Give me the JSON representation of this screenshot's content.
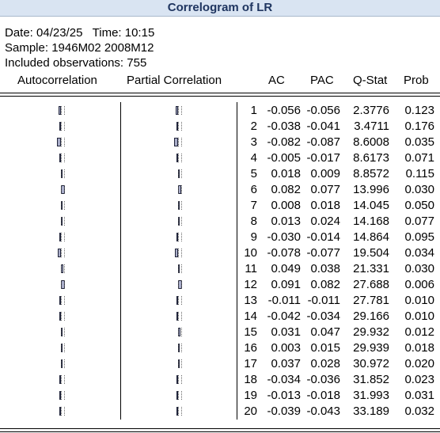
{
  "window": {
    "title": "Correlogram of LR"
  },
  "meta": {
    "date": "Date: 04/23/25   Time: 10:15",
    "sample": "Sample: 1946M02 2008M12",
    "observations": "Included observations: 755"
  },
  "headers": {
    "autocorrelation": "Autocorrelation",
    "partial_correlation": "Partial Correlation",
    "ac": "AC",
    "pac": "PAC",
    "qstat": "Q-Stat",
    "prob": "Prob"
  },
  "rows": [
    {
      "lag": "1",
      "ac": "-0.056",
      "pac": "-0.056",
      "q": "2.3776",
      "prob": "0.123"
    },
    {
      "lag": "2",
      "ac": "-0.038",
      "pac": "-0.041",
      "q": "3.4711",
      "prob": "0.176"
    },
    {
      "lag": "3",
      "ac": "-0.082",
      "pac": "-0.087",
      "q": "8.6008",
      "prob": "0.035"
    },
    {
      "lag": "4",
      "ac": "-0.005",
      "pac": "-0.017",
      "q": "8.6173",
      "prob": "0.071"
    },
    {
      "lag": "5",
      "ac": "0.018",
      "pac": "0.009",
      "q": "8.8572",
      "prob": "0.115"
    },
    {
      "lag": "6",
      "ac": "0.082",
      "pac": "0.077",
      "q": "13.996",
      "prob": "0.030"
    },
    {
      "lag": "7",
      "ac": "0.008",
      "pac": "0.018",
      "q": "14.045",
      "prob": "0.050"
    },
    {
      "lag": "8",
      "ac": "0.013",
      "pac": "0.024",
      "q": "14.168",
      "prob": "0.077"
    },
    {
      "lag": "9",
      "ac": "-0.030",
      "pac": "-0.014",
      "q": "14.864",
      "prob": "0.095"
    },
    {
      "lag": "10",
      "ac": "-0.078",
      "pac": "-0.077",
      "q": "19.504",
      "prob": "0.034"
    },
    {
      "lag": "11",
      "ac": "0.049",
      "pac": "0.038",
      "q": "21.331",
      "prob": "0.030"
    },
    {
      "lag": "12",
      "ac": "0.091",
      "pac": "0.082",
      "q": "27.688",
      "prob": "0.006"
    },
    {
      "lag": "13",
      "ac": "-0.011",
      "pac": "-0.011",
      "q": "27.781",
      "prob": "0.010"
    },
    {
      "lag": "14",
      "ac": "-0.042",
      "pac": "-0.034",
      "q": "29.166",
      "prob": "0.010"
    },
    {
      "lag": "15",
      "ac": "0.031",
      "pac": "0.047",
      "q": "29.932",
      "prob": "0.012"
    },
    {
      "lag": "16",
      "ac": "0.003",
      "pac": "0.015",
      "q": "29.939",
      "prob": "0.018"
    },
    {
      "lag": "17",
      "ac": "0.037",
      "pac": "0.028",
      "q": "30.972",
      "prob": "0.020"
    },
    {
      "lag": "18",
      "ac": "-0.034",
      "pac": "-0.036",
      "q": "31.852",
      "prob": "0.023"
    },
    {
      "lag": "19",
      "ac": "-0.013",
      "pac": "-0.018",
      "q": "31.993",
      "prob": "0.031"
    },
    {
      "lag": "20",
      "ac": "-0.039",
      "pac": "-0.043",
      "q": "33.189",
      "prob": "0.032"
    }
  ],
  "colors": {
    "bar_fill": "#a9adc9",
    "bar_border": "#20243a",
    "title_bg": "#d9e4f2",
    "title_text": "#1f3560"
  }
}
